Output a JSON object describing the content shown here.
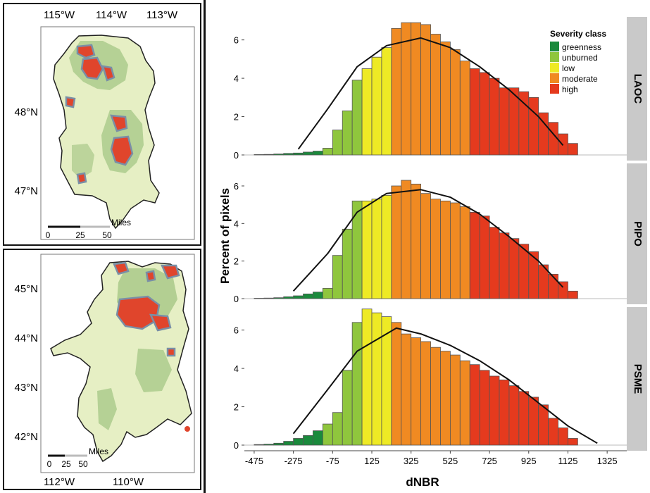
{
  "maps": {
    "top": {
      "lon_labels": [
        "115°W",
        "114°W",
        "113°W"
      ],
      "lat_labels": [
        "48°N",
        "47°N"
      ],
      "scale": {
        "unit": "Miles",
        "ticks": [
          "0",
          "25",
          "50"
        ]
      }
    },
    "bottom": {
      "lon_labels": [
        "112°W",
        "110°W"
      ],
      "lat_labels": [
        "45°N",
        "44°N",
        "43°N",
        "42°N"
      ],
      "scale": {
        "unit": "Miles",
        "ticks": [
          "0",
          "25",
          "50"
        ]
      }
    }
  },
  "colors": {
    "greenness": "#1a8a3c",
    "unburned": "#8fc63d",
    "low": "#eeea25",
    "moderate": "#f08a22",
    "high": "#e53a1e",
    "map_land": "#e6efc4",
    "map_forest": "#a9c98a",
    "map_burn": "#e0452c",
    "map_core": "#7a8fa6",
    "strip": "#c9c9c9"
  },
  "chart_data": {
    "type": "bar",
    "xlabel": "dNBR",
    "ylabel": "Percent of pixels",
    "x_ticks": [
      -475,
      -275,
      -75,
      125,
      325,
      525,
      725,
      925,
      1125,
      1325
    ],
    "y_ticks": [
      0,
      2,
      4,
      6
    ],
    "xlim": [
      -525,
      1425
    ],
    "ylim": [
      0,
      7.2
    ],
    "bin_width": 50,
    "grid": false,
    "legend": {
      "title": "Severity class",
      "position": "top-right",
      "entries": [
        "greenness",
        "unburned",
        "low",
        "moderate",
        "high"
      ]
    },
    "classes": [
      {
        "name": "greenness",
        "from": -475,
        "to": -100
      },
      {
        "name": "unburned",
        "from": -100,
        "to": 100
      },
      {
        "name": "low",
        "from": 100,
        "to": 250
      },
      {
        "name": "moderate",
        "from": 250,
        "to": 650
      },
      {
        "name": "high",
        "from": 650,
        "to": 1425
      }
    ],
    "panels": [
      {
        "label": "LAOC",
        "bin_starts": [
          -475,
          -425,
          -375,
          -325,
          -275,
          -225,
          -175,
          -125,
          -75,
          -25,
          25,
          75,
          125,
          175,
          225,
          275,
          325,
          375,
          425,
          475,
          525,
          575,
          625,
          675,
          725,
          775,
          825,
          875,
          925,
          975,
          1025,
          1075,
          1125
        ],
        "values": [
          0.02,
          0.03,
          0.05,
          0.08,
          0.1,
          0.15,
          0.2,
          0.35,
          1.3,
          2.3,
          3.9,
          4.5,
          5.1,
          5.6,
          6.6,
          6.9,
          6.9,
          6.8,
          6.3,
          5.9,
          5.5,
          4.9,
          4.5,
          4.3,
          4.0,
          3.5,
          3.5,
          3.3,
          3.0,
          2.2,
          1.7,
          1.1,
          0.6
        ],
        "curve": {
          "x": [
            -250,
            -100,
            50,
            200,
            375,
            525,
            675,
            825,
            975,
            1100
          ],
          "y": [
            0.3,
            2.4,
            4.6,
            5.7,
            6.1,
            5.6,
            4.6,
            3.4,
            2.0,
            0.5
          ]
        }
      },
      {
        "label": "PIPO",
        "bin_starts": [
          -475,
          -425,
          -375,
          -325,
          -275,
          -225,
          -175,
          -125,
          -75,
          -25,
          25,
          75,
          125,
          175,
          225,
          275,
          325,
          375,
          425,
          475,
          525,
          575,
          625,
          675,
          725,
          775,
          825,
          875,
          925,
          975,
          1025,
          1075,
          1125
        ],
        "values": [
          0.02,
          0.03,
          0.05,
          0.1,
          0.15,
          0.25,
          0.35,
          0.55,
          2.3,
          3.7,
          5.2,
          5.2,
          5.3,
          5.5,
          6.0,
          6.3,
          6.1,
          5.6,
          5.3,
          5.2,
          5.1,
          4.9,
          4.6,
          4.4,
          3.8,
          3.5,
          3.2,
          2.9,
          2.5,
          1.8,
          1.3,
          0.9,
          0.4
        ],
        "curve": {
          "x": [
            -275,
            -100,
            50,
            200,
            375,
            525,
            675,
            825,
            975,
            1100
          ],
          "y": [
            0.4,
            2.4,
            4.6,
            5.6,
            5.8,
            5.4,
            4.5,
            3.3,
            2.0,
            0.6
          ]
        }
      },
      {
        "label": "PSME",
        "bin_starts": [
          -475,
          -425,
          -375,
          -325,
          -275,
          -225,
          -175,
          -125,
          -75,
          -25,
          25,
          75,
          125,
          175,
          225,
          275,
          325,
          375,
          425,
          475,
          525,
          575,
          625,
          675,
          725,
          775,
          825,
          875,
          925,
          975,
          1025,
          1075,
          1125
        ],
        "values": [
          0.03,
          0.05,
          0.1,
          0.2,
          0.35,
          0.5,
          0.75,
          1.1,
          1.7,
          3.9,
          6.4,
          7.1,
          6.9,
          6.7,
          6.4,
          5.8,
          5.6,
          5.4,
          5.1,
          4.9,
          4.7,
          4.4,
          4.2,
          3.9,
          3.6,
          3.4,
          3.1,
          2.8,
          2.5,
          2.1,
          1.4,
          0.9,
          0.35
        ],
        "curve": {
          "x": [
            -275,
            -100,
            50,
            250,
            375,
            525,
            675,
            825,
            975,
            1125,
            1275
          ],
          "y": [
            0.6,
            2.9,
            4.9,
            6.1,
            5.8,
            5.2,
            4.4,
            3.4,
            2.2,
            1.0,
            0.1
          ]
        }
      }
    ]
  }
}
